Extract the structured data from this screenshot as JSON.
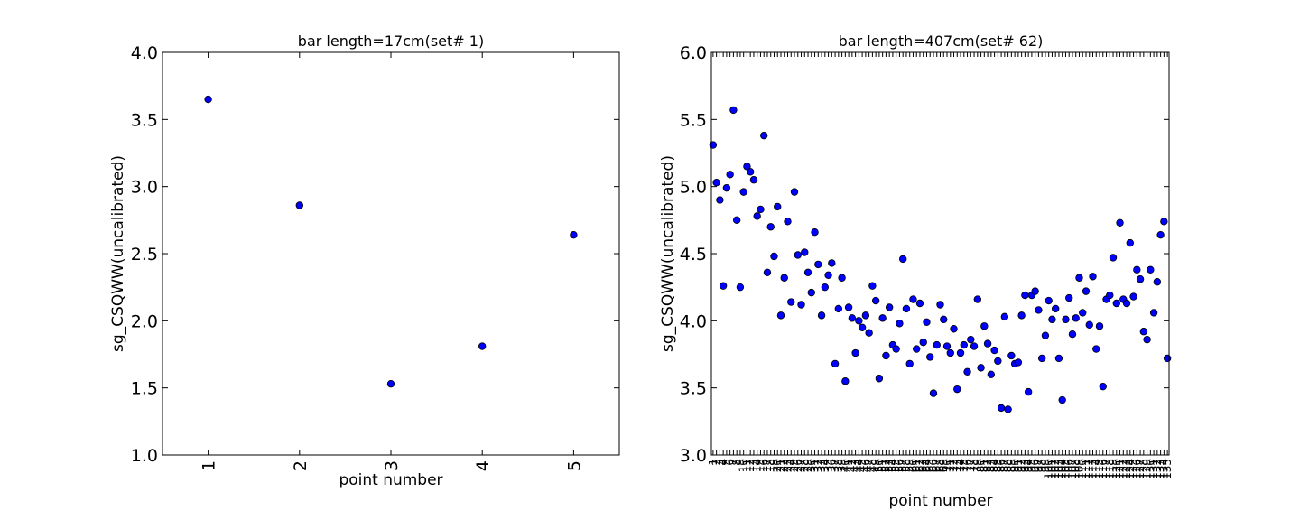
{
  "chart_data": [
    {
      "type": "scatter",
      "title": "bar length=17cm(set# 1)",
      "xlabel": "point number",
      "ylabel": "sg_CSQWW(uncalibrated)",
      "xlim": [
        0.5,
        5.5
      ],
      "ylim": [
        1.0,
        4.0
      ],
      "xticks": [
        "1",
        "2",
        "3",
        "4",
        "5"
      ],
      "yticks": [
        "1.0",
        "1.5",
        "2.0",
        "2.5",
        "3.0",
        "3.5",
        "4.0"
      ],
      "x": [
        1,
        2,
        3,
        4,
        5
      ],
      "y": [
        3.65,
        2.86,
        1.53,
        1.81,
        2.64
      ],
      "marker_color": "#0000ff"
    },
    {
      "type": "scatter",
      "title": "bar length=407cm(set# 62)",
      "xlabel": "point number",
      "ylabel": "sg_CSQWW(uncalibrated)",
      "xlim": [
        0.5,
        135.5
      ],
      "ylim": [
        3.0,
        6.0
      ],
      "yticks": [
        "3.0",
        "3.5",
        "4.0",
        "4.5",
        "5.0",
        "5.5",
        "6.0"
      ],
      "x": [
        1,
        2,
        3,
        4,
        5,
        6,
        7,
        8,
        9,
        10,
        11,
        12,
        13,
        14,
        15,
        16,
        17,
        18,
        19,
        20,
        21,
        22,
        23,
        24,
        25,
        26,
        27,
        28,
        29,
        30,
        31,
        32,
        33,
        34,
        35,
        36,
        37,
        38,
        39,
        40,
        41,
        42,
        43,
        44,
        45,
        46,
        47,
        48,
        49,
        50,
        51,
        52,
        53,
        54,
        55,
        56,
        57,
        58,
        59,
        60,
        61,
        62,
        63,
        64,
        65,
        66,
        67,
        68,
        69,
        70,
        71,
        72,
        73,
        74,
        75,
        76,
        77,
        78,
        79,
        80,
        81,
        82,
        83,
        84,
        85,
        86,
        87,
        88,
        89,
        90,
        91,
        92,
        93,
        94,
        95,
        96,
        97,
        98,
        99,
        100,
        101,
        102,
        103,
        104,
        105,
        106,
        107,
        108,
        109,
        110,
        111,
        112,
        113,
        114,
        115,
        116,
        117,
        118,
        119,
        120,
        121,
        122,
        123,
        124,
        125,
        126,
        127,
        128,
        129,
        130,
        131,
        132,
        133,
        134,
        135
      ],
      "y": [
        5.31,
        5.03,
        4.9,
        4.26,
        4.99,
        5.09,
        5.57,
        4.75,
        4.25,
        4.96,
        5.15,
        5.11,
        5.05,
        4.78,
        4.83,
        5.38,
        4.36,
        4.7,
        4.48,
        4.85,
        4.04,
        4.32,
        4.74,
        4.14,
        4.96,
        4.49,
        4.12,
        4.51,
        4.36,
        4.21,
        4.66,
        4.42,
        4.04,
        4.25,
        4.34,
        4.43,
        3.68,
        4.09,
        4.32,
        3.55,
        4.1,
        4.02,
        3.76,
        4.0,
        3.95,
        4.04,
        3.91,
        4.26,
        4.15,
        3.57,
        4.02,
        3.74,
        4.1,
        3.82,
        3.79,
        3.98,
        4.46,
        4.09,
        3.68,
        4.16,
        3.79,
        4.13,
        3.84,
        3.99,
        3.73,
        3.46,
        3.82,
        4.12,
        4.01,
        3.81,
        3.76,
        3.94,
        3.49,
        3.76,
        3.82,
        3.62,
        3.86,
        3.81,
        4.16,
        3.65,
        3.96,
        3.83,
        3.6,
        3.78,
        3.7,
        3.35,
        4.03,
        3.34,
        3.74,
        3.68,
        3.69,
        4.04,
        4.19,
        3.47,
        4.19,
        4.22,
        4.08,
        3.72,
        3.89,
        4.15,
        4.01,
        4.09,
        3.72,
        3.41,
        4.01,
        4.17,
        3.9,
        4.02,
        4.32,
        4.06,
        4.22,
        3.97,
        4.33,
        3.79,
        3.96,
        3.51,
        4.16,
        4.19,
        4.47,
        4.13,
        4.73,
        4.16,
        4.13,
        4.58,
        4.18,
        4.38,
        4.31,
        3.92,
        3.86,
        4.38,
        4.06,
        4.29,
        4.64,
        4.74,
        3.72
      ],
      "marker_color": "#0000ff"
    }
  ]
}
